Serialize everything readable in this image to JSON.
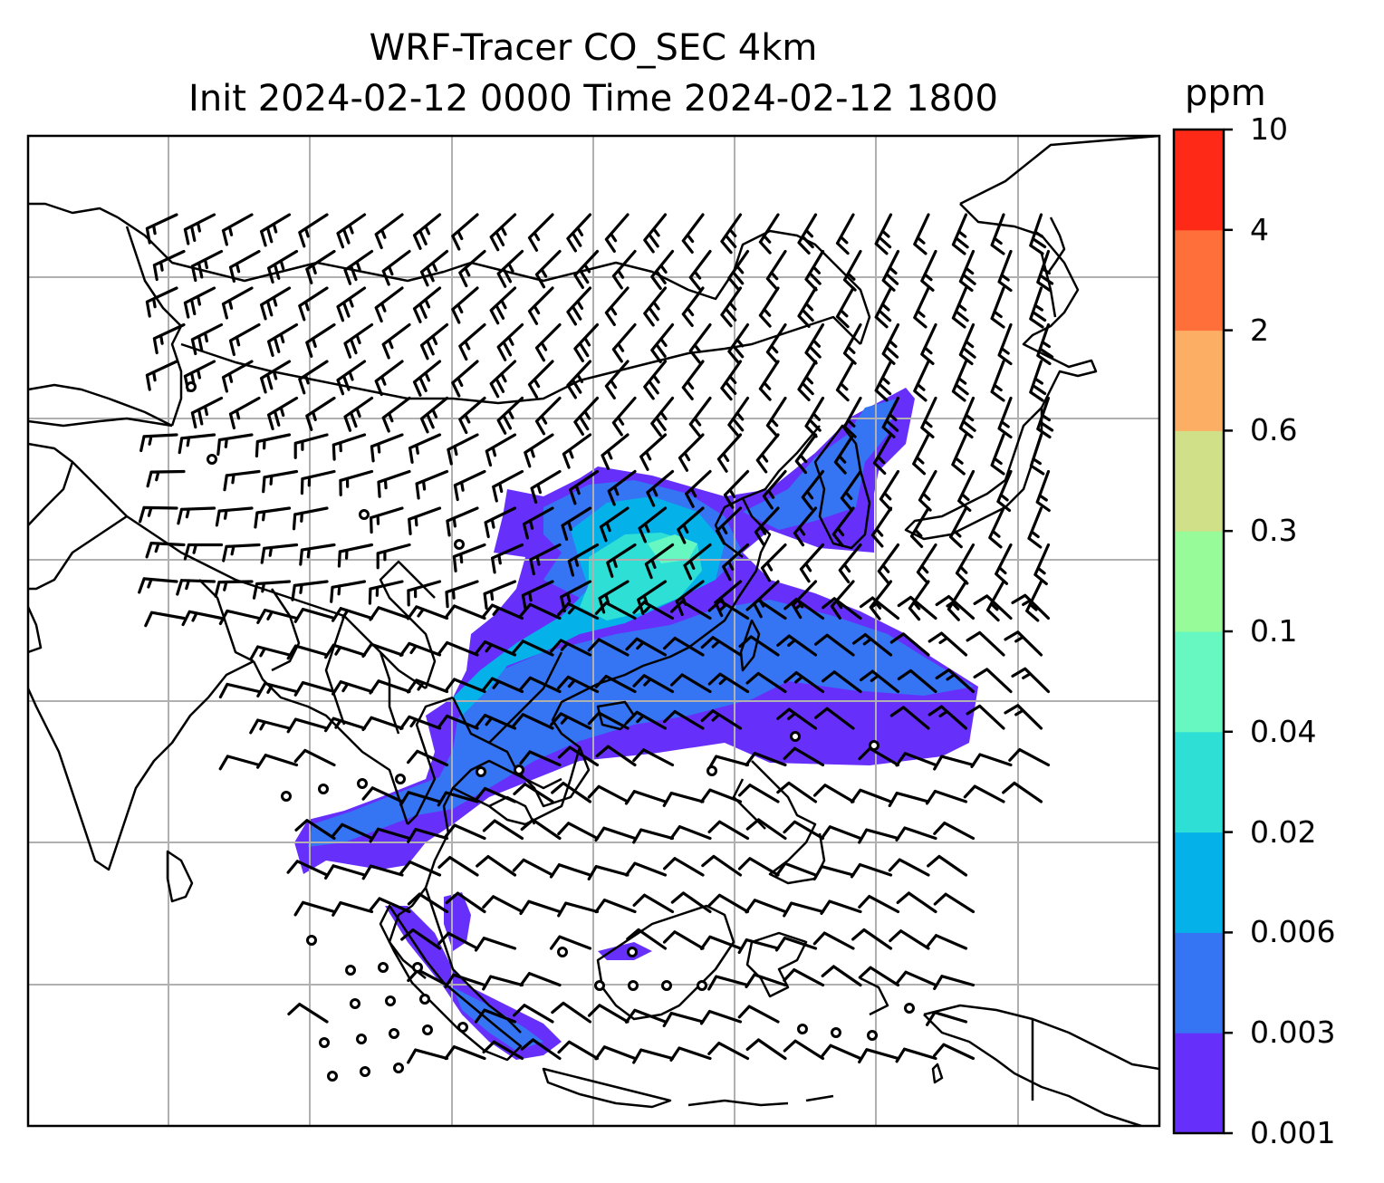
{
  "title": {
    "line1": "WRF-Tracer CO_SEC 4km",
    "line2": "Init 2024-02-12 0000 Time 2024-02-12 1800"
  },
  "colorbar": {
    "unit": "ppm",
    "levels": [
      {
        "label": "0.001",
        "color": "#6730fa"
      },
      {
        "label": "0.003",
        "color": "#3574f3"
      },
      {
        "label": "0.006",
        "color": "#05b1e9"
      },
      {
        "label": "0.02",
        "color": "#2edfd6"
      },
      {
        "label": "0.04",
        "color": "#66f8c0"
      },
      {
        "label": "0.1",
        "color": "#97fb9a"
      },
      {
        "label": "0.3",
        "color": "#d0e089"
      },
      {
        "label": "0.6",
        "color": "#fdae65"
      },
      {
        "label": "2",
        "color": "#ff6f3a"
      },
      {
        "label": "4",
        "color": "#fe2a17"
      },
      {
        "label": "10",
        "color": null
      }
    ]
  },
  "map": {
    "grid": "on",
    "coastline_color": "#000000",
    "gridline_color": "#b0b0b0"
  }
}
